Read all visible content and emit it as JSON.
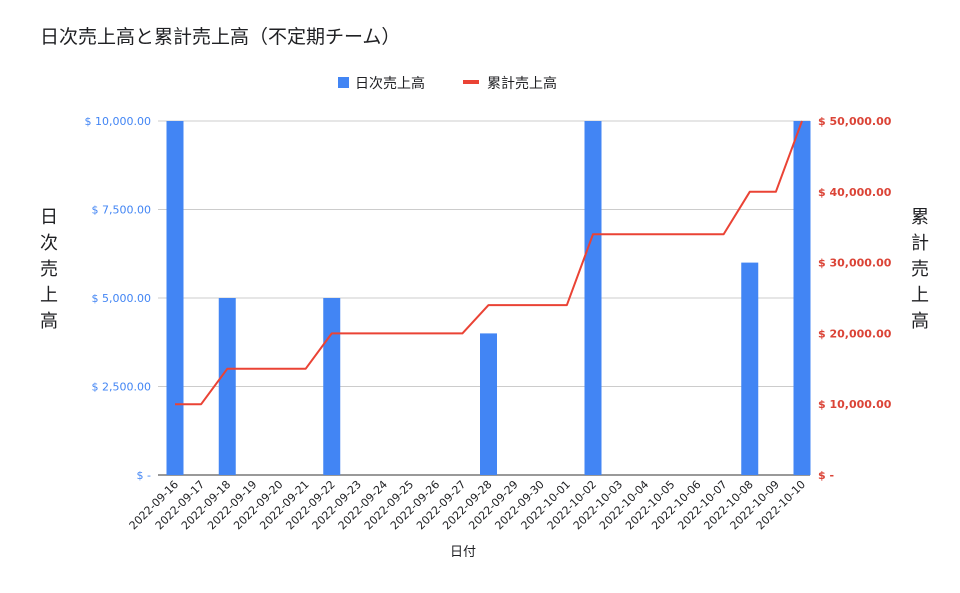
{
  "chart_data": {
    "type": "bar+line",
    "title": "日次売上高と累計売上高（不定期チーム）",
    "xlabel": "日付",
    "ylabel_left": "日次売上高",
    "ylabel_right": "累計売上高",
    "categories": [
      "2022-09-16",
      "2022-09-17",
      "2022-09-18",
      "2022-09-19",
      "2022-09-20",
      "2022-09-21",
      "2022-09-22",
      "2022-09-23",
      "2022-09-24",
      "2022-09-25",
      "2022-09-26",
      "2022-09-27",
      "2022-09-28",
      "2022-09-29",
      "2022-09-30",
      "2022-10-01",
      "2022-10-02",
      "2022-10-03",
      "2022-10-04",
      "2022-10-05",
      "2022-10-06",
      "2022-10-07",
      "2022-10-08",
      "2022-10-09",
      "2022-10-10"
    ],
    "series": [
      {
        "name": "日次売上高",
        "type": "bar",
        "axis": "left",
        "color": "#4285f4",
        "values": [
          10000,
          0,
          5000,
          0,
          0,
          0,
          5000,
          0,
          0,
          0,
          0,
          0,
          4000,
          0,
          0,
          0,
          10000,
          0,
          0,
          0,
          0,
          0,
          6000,
          0,
          10000
        ]
      },
      {
        "name": "累計売上高",
        "type": "line",
        "axis": "right",
        "color": "#ea4335",
        "values": [
          10000,
          10000,
          15000,
          15000,
          15000,
          15000,
          20000,
          20000,
          20000,
          20000,
          20000,
          20000,
          24000,
          24000,
          24000,
          24000,
          34000,
          34000,
          34000,
          34000,
          34000,
          34000,
          40000,
          40000,
          50000
        ]
      }
    ],
    "ylim_left": [
      0,
      10000
    ],
    "ylim_right": [
      0,
      50000
    ],
    "yticks_left": [
      "$ -",
      "$ 2,500.00",
      "$ 5,000.00",
      "$ 7,500.00",
      "$ 10,000.00"
    ],
    "yticks_right": [
      "$ -",
      "$ 10,000.00",
      "$ 20,000.00",
      "$ 30,000.00",
      "$ 40,000.00",
      "$ 50,000.00"
    ],
    "grid": true,
    "legend_position": "top"
  }
}
